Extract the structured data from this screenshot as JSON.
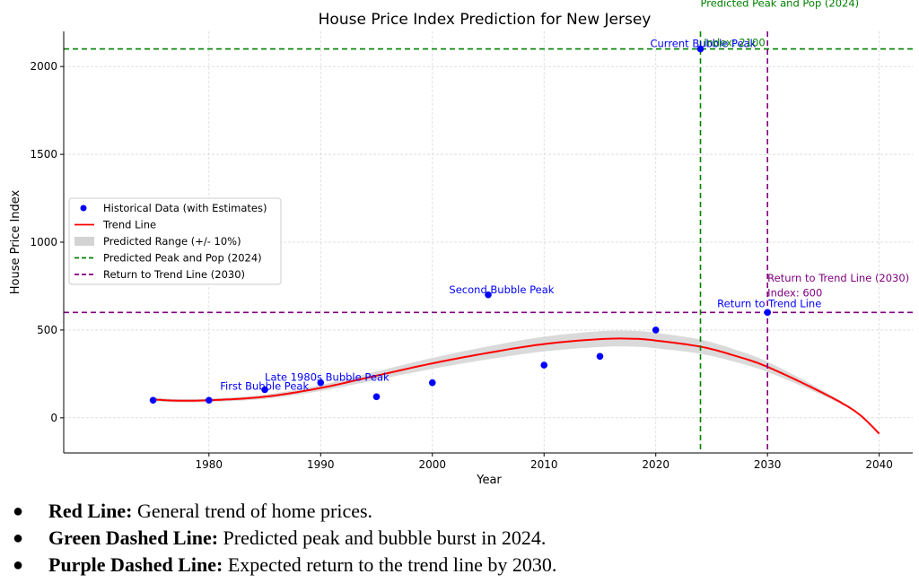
{
  "chart_data": {
    "type": "line",
    "title": "House Price Index Prediction for New Jersey",
    "xlabel": "Year",
    "ylabel": "House Price Index",
    "xlim": [
      1967,
      2043
    ],
    "ylim": [
      -200,
      2200
    ],
    "x_ticks": [
      1980,
      1990,
      2000,
      2010,
      2020,
      2030,
      2040
    ],
    "y_ticks": [
      0,
      500,
      1000,
      1500,
      2000
    ],
    "grid": true,
    "legend_position": "center-left",
    "legend": [
      {
        "label": "Historical Data (with Estimates)",
        "kind": "dot",
        "color": "#0000ff"
      },
      {
        "label": "Trend Line",
        "kind": "line",
        "color": "#ff0000"
      },
      {
        "label": "Predicted Range (+/- 10%)",
        "kind": "band",
        "color": "#d3d3d3"
      },
      {
        "label": "Predicted Peak and Pop (2024)",
        "kind": "dashed",
        "color": "#008000"
      },
      {
        "label": "Return to Trend Line (2030)",
        "kind": "dashed",
        "color": "#800080"
      }
    ],
    "historical": {
      "x": [
        1975,
        1980,
        1985,
        1990,
        1995,
        2000,
        2005,
        2010,
        2015,
        2020
      ],
      "y": [
        100,
        100,
        160,
        200,
        120,
        200,
        700,
        300,
        350,
        500
      ],
      "color": "#0000ff"
    },
    "trend": {
      "x": [
        1975,
        1977,
        1980,
        1985,
        1990,
        1995,
        2000,
        2005,
        2010,
        2015,
        2018,
        2020,
        2024,
        2027,
        2030,
        2035,
        2038,
        2040
      ],
      "y": [
        105,
        98,
        100,
        120,
        170,
        240,
        310,
        370,
        420,
        448,
        450,
        440,
        405,
        355,
        290,
        140,
        30,
        -90
      ],
      "band_fraction": 0.1,
      "color": "#ff0000"
    },
    "vlines": [
      {
        "x": 2024,
        "color": "#008000",
        "label": "Predicted Peak and Pop (2024)"
      },
      {
        "x": 2030,
        "color": "#800080",
        "label": ""
      }
    ],
    "hlines": [
      {
        "y": 2100,
        "color": "#008000"
      },
      {
        "y": 600,
        "color": "#800080"
      }
    ],
    "markers": [
      {
        "x": 2024,
        "y": 2100,
        "color": "#0000ff"
      },
      {
        "x": 2030,
        "y": 600,
        "color": "#0000ff"
      }
    ],
    "annotations": [
      {
        "text": "First Bubble Peak",
        "x": 1981,
        "y": 160,
        "color": "#0000ff"
      },
      {
        "text": "Late 1980s Bubble Peak",
        "x": 1985,
        "y": 210,
        "color": "#0000ff"
      },
      {
        "text": "Second Bubble Peak",
        "x": 2001.5,
        "y": 710,
        "color": "#0000ff"
      },
      {
        "text": "Current Bubble Peak",
        "x": 2019.5,
        "y": 2110,
        "color": "#0000ff"
      },
      {
        "text": "Index: 2100",
        "x": 2024.3,
        "y": 2115,
        "color": "#008000"
      },
      {
        "text": "Predicted Peak and Pop (2024)",
        "x": 2024,
        "y": 2340,
        "color": "#008000"
      },
      {
        "text": "Return to Trend Line (2030)",
        "x": 2030,
        "y": 775,
        "color": "#800080"
      },
      {
        "text": "Index: 600",
        "x": 2030,
        "y": 690,
        "color": "#800080"
      },
      {
        "text": "Return to Trend Line",
        "x": 2025.5,
        "y": 630,
        "color": "#0000ff"
      }
    ]
  },
  "notes": [
    {
      "term": "Red Line:",
      "text": " General trend of home prices."
    },
    {
      "term": "Green Dashed Line:",
      "text": " Predicted peak and bubble burst in 2024."
    },
    {
      "term": "Purple Dashed Line:",
      "text": " Expected return to the trend line by 2030."
    }
  ]
}
